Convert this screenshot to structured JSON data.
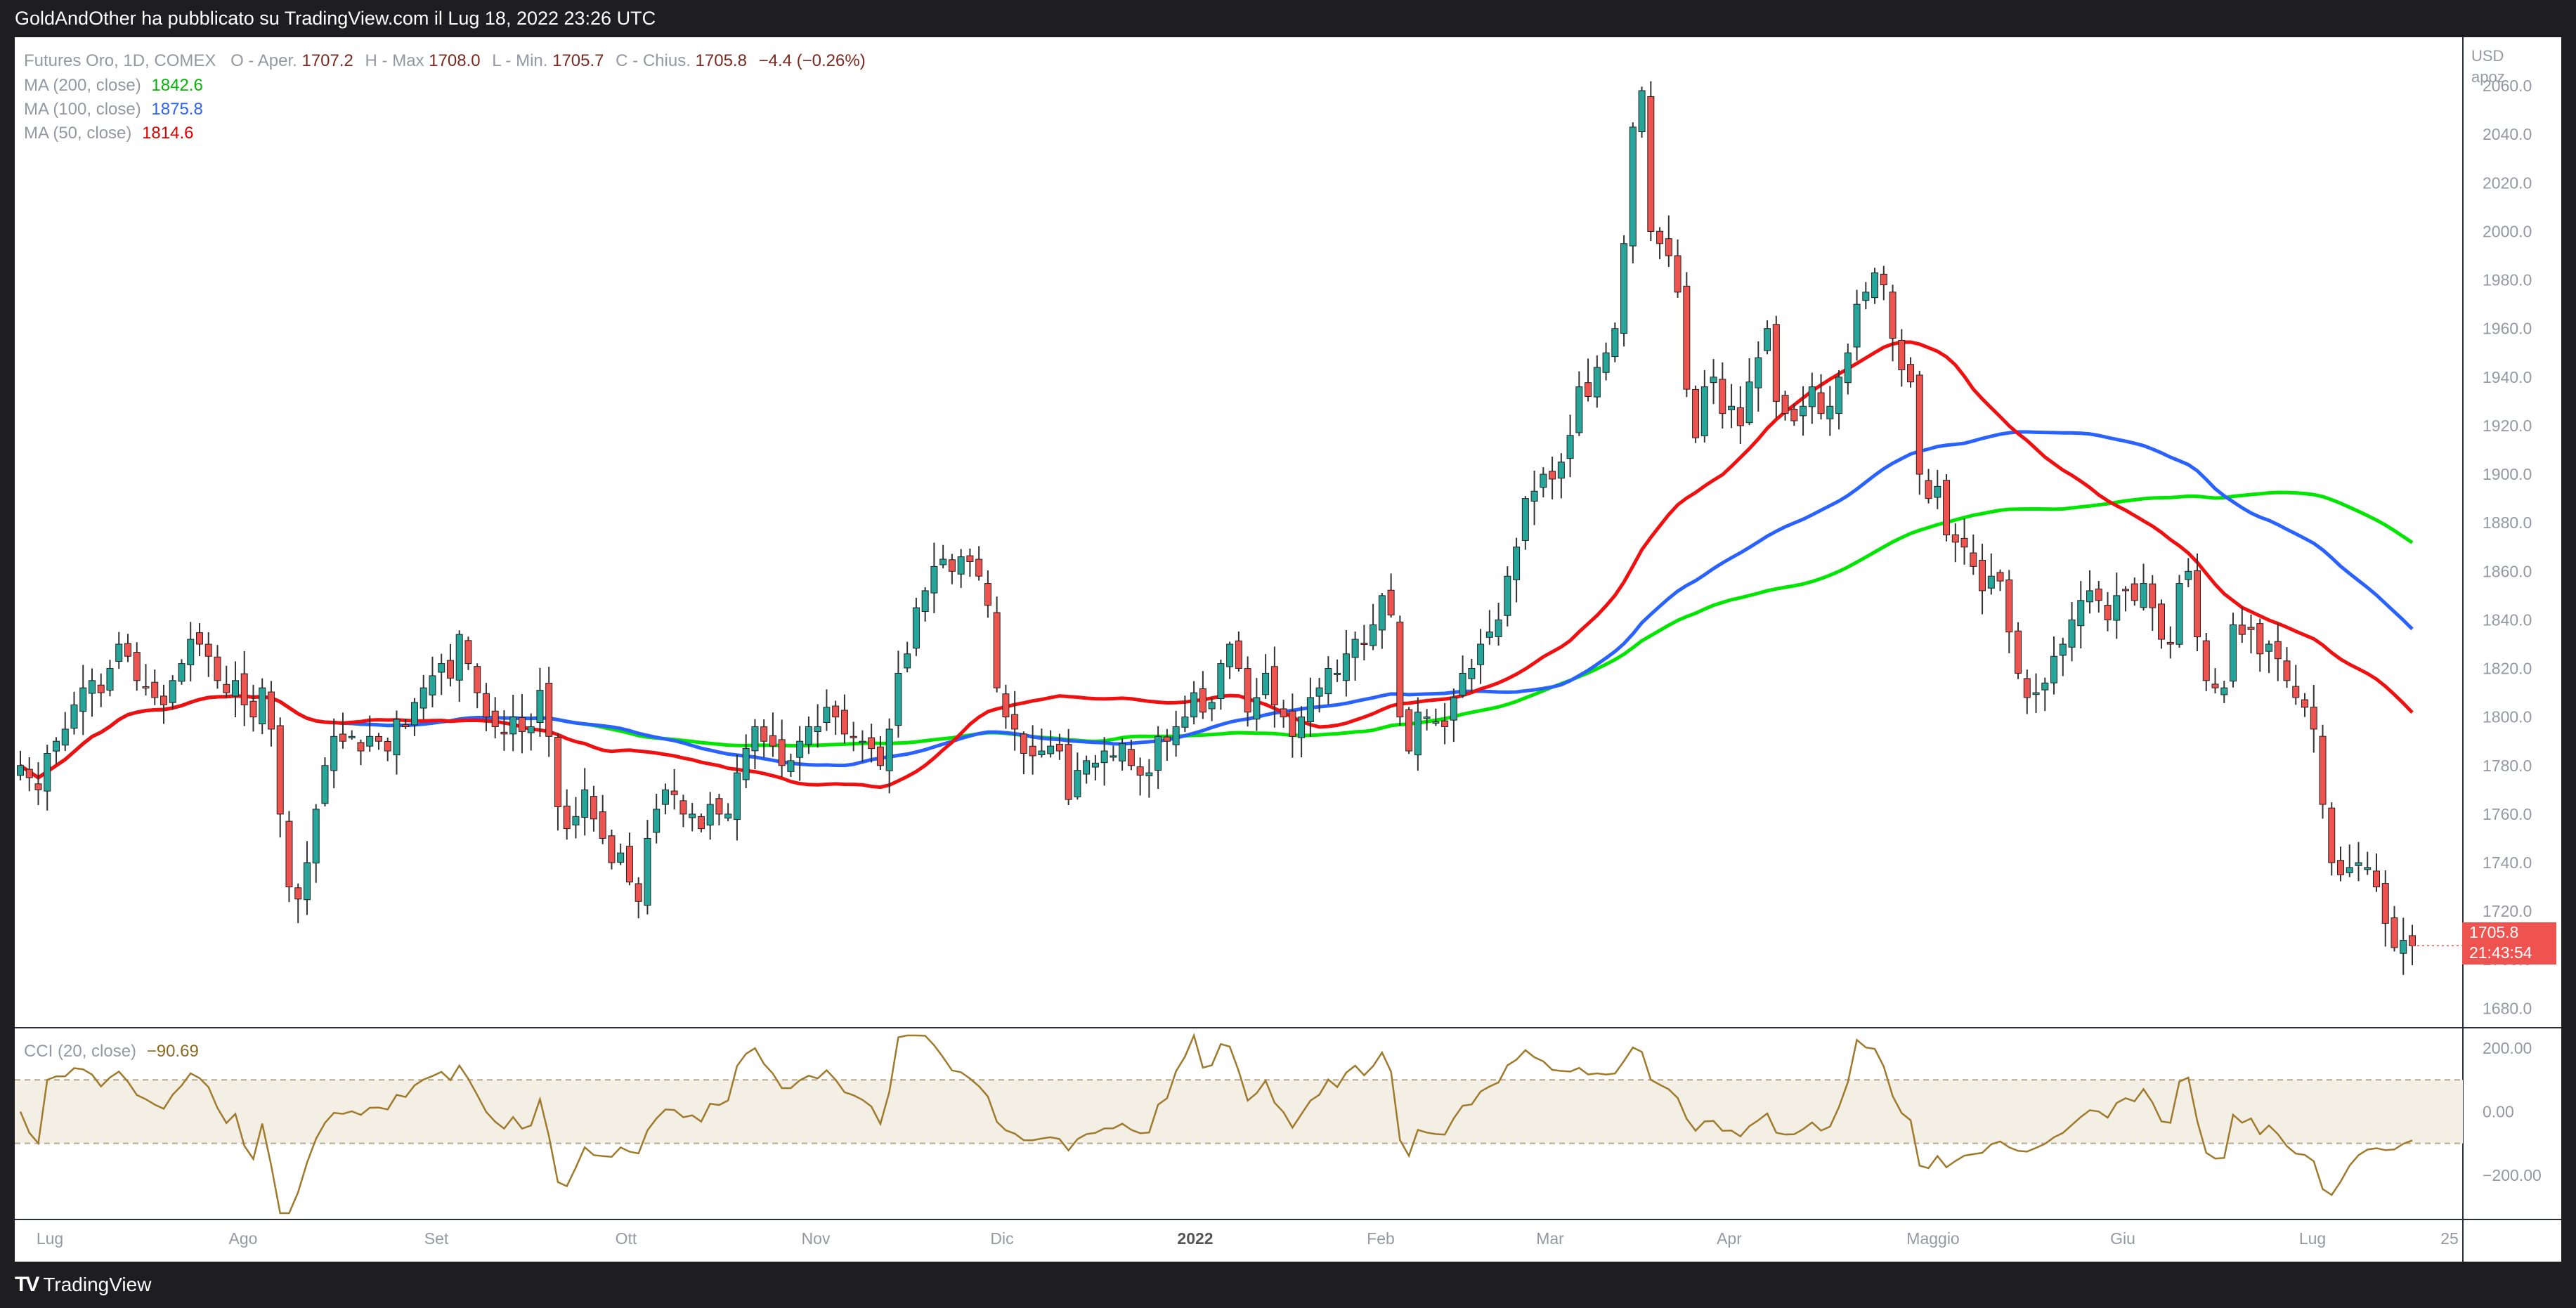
{
  "header": {
    "published_by": "GoldAndOther ha pubblicato su TradingView.com il Lug 18, 2022 23:26 UTC"
  },
  "legend": {
    "symbol": "Futures Oro, 1D, COMEX",
    "open_label": "O - Aper.",
    "open_value": "1707.2",
    "high_label": "H - Max",
    "high_value": "1708.0",
    "low_label": "L - Min.",
    "low_value": "1705.7",
    "close_label": "C - Chius.",
    "close_value": "1705.8",
    "change": "−4.4 (−0.26%)",
    "ma200_label": "MA (200, close)",
    "ma200_value": "1842.6",
    "ma100_label": "MA (100, close)",
    "ma100_value": "1875.8",
    "ma50_label": "MA (50, close)",
    "ma50_value": "1814.6"
  },
  "price_axis": {
    "currency": "USD",
    "scale_mode": "apoz",
    "last_price": "1705.8",
    "countdown": "21:43:54"
  },
  "cci_legend": {
    "label": "CCI (20, close)",
    "value": "−90.69"
  },
  "footer": {
    "brand": "TradingView"
  },
  "colors": {
    "up": "#26a69a",
    "down": "#ef5350",
    "ma200": "#00e600",
    "ma100": "#2962ff",
    "ma50": "#f01010",
    "cci": "#a07a2c",
    "cci_band": "#f4efe5"
  },
  "chart_data": [
    {
      "type": "candlestick",
      "title": "Futures Oro, 1D, COMEX",
      "y_unit": "USD",
      "ylim": [
        1672,
        2080
      ],
      "y_ticks": [
        "1680.0",
        "1700.0",
        "1720.0",
        "1740.0",
        "1760.0",
        "1780.0",
        "1800.0",
        "1820.0",
        "1840.0",
        "1860.0",
        "1880.0",
        "1900.0",
        "1920.0",
        "1940.0",
        "1960.0",
        "1980.0",
        "2000.0",
        "2020.0",
        "2040.0",
        "2060.0"
      ],
      "x_ticks": [
        "Lug",
        "Ago",
        "Set",
        "Ott",
        "Nov",
        "Dic",
        "2022",
        "Feb",
        "Mar",
        "Apr",
        "Maggio",
        "Giu",
        "Lug",
        "25"
      ],
      "x_range": "2021-07-01 to 2022-07-18 (daily)",
      "ohlc_close_path": [
        1780,
        1775,
        1770,
        1785,
        1790,
        1795,
        1805,
        1812,
        1815,
        1810,
        1820,
        1830,
        1825,
        1815,
        1812,
        1808,
        1805,
        1815,
        1822,
        1832,
        1830,
        1825,
        1815,
        1810,
        1815,
        1805,
        1800,
        1812,
        1795,
        1760,
        1730,
        1725,
        1740,
        1762,
        1780,
        1792,
        1790,
        1792,
        1786,
        1792,
        1790,
        1786,
        1799,
        1796,
        1806,
        1812,
        1817,
        1822,
        1816,
        1834,
        1822,
        1810,
        1800,
        1796,
        1793,
        1800,
        1794,
        1796,
        1811,
        1792,
        1763,
        1754,
        1759,
        1770,
        1758,
        1750,
        1740,
        1744,
        1732,
        1724,
        1750,
        1762,
        1770,
        1768,
        1760,
        1760,
        1754,
        1764,
        1760,
        1760,
        1777,
        1787,
        1796,
        1790,
        1788,
        1780,
        1782,
        1790,
        1796,
        1796,
        1804,
        1800,
        1793,
        1792,
        1790,
        1787,
        1780,
        1795,
        1818,
        1826,
        1845,
        1852,
        1862,
        1865,
        1860,
        1866,
        1864,
        1858,
        1846,
        1812,
        1800,
        1795,
        1785,
        1784,
        1786,
        1788,
        1786,
        1766,
        1778,
        1782,
        1781,
        1786,
        1784,
        1789,
        1780,
        1776,
        1777,
        1792,
        1790,
        1796,
        1800,
        1810,
        1802,
        1806,
        1822,
        1830,
        1820,
        1802,
        1808,
        1818,
        1805,
        1800,
        1792,
        1800,
        1808,
        1812,
        1820,
        1818,
        1826,
        1832,
        1830,
        1838,
        1850,
        1842,
        1800,
        1786,
        1802,
        1800,
        1798,
        1796,
        1808,
        1818,
        1820,
        1830,
        1835,
        1840,
        1858,
        1870,
        1890,
        1893,
        1900,
        1898,
        1905,
        1916,
        1936,
        1932,
        1944,
        1950,
        1960,
        1995,
        2043,
        2058,
        2000,
        1995,
        1990,
        1975,
        1935,
        1915,
        1936,
        1940,
        1925,
        1928,
        1920,
        1938,
        1948,
        1960,
        1930,
        1925,
        1922,
        1928,
        1936,
        1925,
        1928,
        1940,
        1950,
        1970,
        1975,
        1983,
        1978,
        1956,
        1943,
        1938,
        1900,
        1890,
        1895,
        1875,
        1872,
        1870,
        1862,
        1852,
        1858,
        1856,
        1835,
        1818,
        1808,
        1810,
        1814,
        1825,
        1830,
        1840,
        1848,
        1852,
        1848,
        1840,
        1850,
        1852,
        1848,
        1855,
        1845,
        1832,
        1830,
        1855,
        1860,
        1833,
        1815,
        1812,
        1812,
        1838,
        1834,
        1836,
        1826,
        1830,
        1824,
        1815,
        1808,
        1804,
        1795,
        1764,
        1740,
        1735,
        1738,
        1740,
        1738,
        1730,
        1715,
        1705,
        1708,
        1705.8
      ],
      "moving_averages": [
        {
          "name": "MA (200, close)",
          "last": 1842.6
        },
        {
          "name": "MA (100, close)",
          "last": 1875.8
        },
        {
          "name": "MA (50, close)",
          "last": 1814.6
        }
      ]
    },
    {
      "type": "line",
      "title": "CCI (20, close)",
      "ylim": [
        -340,
        260
      ],
      "y_ticks": [
        "200.00",
        "0.00",
        "−200.00"
      ],
      "band": [
        -100,
        100
      ],
      "last": -90.69
    }
  ]
}
